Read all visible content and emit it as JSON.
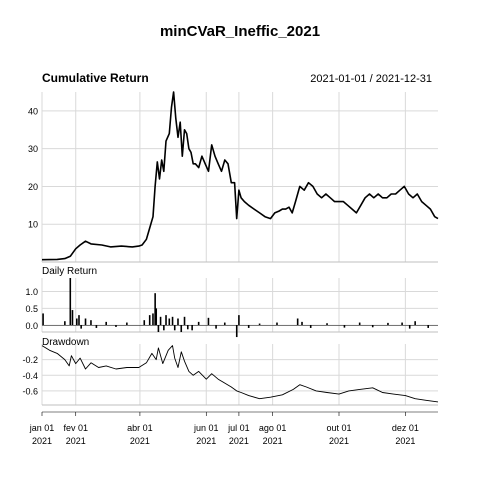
{
  "title": "minCVaR_Ineffic_2021",
  "date_range": "2021-01-01 / 2021-12-31",
  "colors": {
    "line": "#000000",
    "grid": "#d9d9d9",
    "frame": "#bfbfbf",
    "text": "#000000"
  },
  "chart_data": [
    {
      "type": "line",
      "title": "Cumulative Return",
      "x_ticks": [
        {
          "date": "2021-01-01",
          "month": "jan 01",
          "year": "2021"
        },
        {
          "date": "2021-02-01",
          "month": "fev 01",
          "year": "2021"
        },
        {
          "date": "2021-04-01",
          "month": "abr 01",
          "year": "2021"
        },
        {
          "date": "2021-06-01",
          "month": "jun 01",
          "year": "2021"
        },
        {
          "date": "2021-07-01",
          "month": "jul 01",
          "year": "2021"
        },
        {
          "date": "2021-08-01",
          "month": "ago 01",
          "year": "2021"
        },
        {
          "date": "2021-10-01",
          "month": "out 01",
          "year": "2021"
        },
        {
          "date": "2021-12-01",
          "month": "dez 01",
          "year": "2021"
        }
      ],
      "ylim": [
        0,
        45
      ],
      "yticks": [
        10,
        20,
        30,
        40
      ],
      "grid": true,
      "x": [
        "2021-01-01",
        "2021-01-15",
        "2021-01-22",
        "2021-01-27",
        "2021-02-01",
        "2021-02-05",
        "2021-02-10",
        "2021-02-15",
        "2021-02-25",
        "2021-03-05",
        "2021-03-15",
        "2021-03-25",
        "2021-03-31",
        "2021-04-03",
        "2021-04-07",
        "2021-04-10",
        "2021-04-13",
        "2021-04-15",
        "2021-04-17",
        "2021-04-19",
        "2021-04-21",
        "2021-04-23",
        "2021-04-25",
        "2021-04-28",
        "2021-04-30",
        "2021-05-02",
        "2021-05-04",
        "2021-05-06",
        "2021-05-08",
        "2021-05-10",
        "2021-05-12",
        "2021-05-14",
        "2021-05-16",
        "2021-05-18",
        "2021-05-20",
        "2021-05-22",
        "2021-05-25",
        "2021-05-28",
        "2021-05-31",
        "2021-06-03",
        "2021-06-06",
        "2021-06-09",
        "2021-06-12",
        "2021-06-15",
        "2021-06-18",
        "2021-06-21",
        "2021-06-24",
        "2021-06-27",
        "2021-06-29",
        "2021-07-01",
        "2021-07-03",
        "2021-07-06",
        "2021-07-10",
        "2021-07-15",
        "2021-07-20",
        "2021-07-25",
        "2021-07-30",
        "2021-08-03",
        "2021-08-07",
        "2021-08-10",
        "2021-08-13",
        "2021-08-16",
        "2021-08-19",
        "2021-08-22",
        "2021-08-26",
        "2021-08-30",
        "2021-09-03",
        "2021-09-07",
        "2021-09-11",
        "2021-09-15",
        "2021-09-19",
        "2021-09-23",
        "2021-09-27",
        "2021-10-01",
        "2021-10-05",
        "2021-10-09",
        "2021-10-13",
        "2021-10-17",
        "2021-10-21",
        "2021-10-25",
        "2021-10-29",
        "2021-11-02",
        "2021-11-06",
        "2021-11-10",
        "2021-11-14",
        "2021-11-18",
        "2021-11-22",
        "2021-11-26",
        "2021-11-30",
        "2021-12-04",
        "2021-12-08",
        "2021-12-12",
        "2021-12-16",
        "2021-12-20",
        "2021-12-24",
        "2021-12-28",
        "2021-12-31"
      ],
      "y": [
        0.6,
        0.7,
        0.9,
        1.5,
        3.5,
        4.5,
        5.5,
        4.8,
        4.5,
        4.0,
        4.2,
        4.0,
        4.2,
        4.5,
        6,
        9,
        12,
        20,
        26.5,
        22,
        27,
        24,
        32,
        34,
        41,
        45,
        38,
        33,
        37,
        28,
        35,
        34,
        30,
        29,
        26,
        26,
        25,
        28,
        26,
        24,
        31,
        28,
        26,
        24,
        27,
        26,
        21,
        21,
        11.5,
        19,
        17,
        16,
        15,
        14,
        13,
        12,
        11.5,
        13,
        13.5,
        14,
        14,
        14.5,
        13,
        16,
        20,
        19,
        21,
        20,
        18,
        17,
        18,
        17,
        16,
        16,
        16,
        15,
        14,
        13,
        15,
        17,
        18,
        17,
        18,
        17,
        17,
        18,
        18,
        19,
        20,
        18,
        17,
        18,
        16,
        15,
        14,
        12,
        11.5
      ]
    },
    {
      "type": "bar",
      "title": "Daily Return",
      "ylim": [
        -0.2,
        1.4
      ],
      "yticks": [
        0.0,
        0.5,
        1.0
      ],
      "spikes": [
        {
          "date": "2021-01-02",
          "value": 0.35
        },
        {
          "date": "2021-01-22",
          "value": 0.12
        },
        {
          "date": "2021-01-27",
          "value": 1.4
        },
        {
          "date": "2021-01-29",
          "value": 0.45
        },
        {
          "date": "2021-02-02",
          "value": 0.2
        },
        {
          "date": "2021-02-04",
          "value": 0.3
        },
        {
          "date": "2021-02-06",
          "value": -0.1
        },
        {
          "date": "2021-02-10",
          "value": 0.2
        },
        {
          "date": "2021-02-15",
          "value": 0.15
        },
        {
          "date": "2021-02-20",
          "value": -0.08
        },
        {
          "date": "2021-03-01",
          "value": 0.1
        },
        {
          "date": "2021-03-10",
          "value": -0.05
        },
        {
          "date": "2021-03-20",
          "value": 0.08
        },
        {
          "date": "2021-04-05",
          "value": 0.15
        },
        {
          "date": "2021-04-10",
          "value": 0.3
        },
        {
          "date": "2021-04-13",
          "value": 0.35
        },
        {
          "date": "2021-04-15",
          "value": 0.95
        },
        {
          "date": "2021-04-16",
          "value": 0.5
        },
        {
          "date": "2021-04-18",
          "value": -0.2
        },
        {
          "date": "2021-04-20",
          "value": 0.25
        },
        {
          "date": "2021-04-23",
          "value": -0.15
        },
        {
          "date": "2021-04-25",
          "value": 0.3
        },
        {
          "date": "2021-04-28",
          "value": 0.2
        },
        {
          "date": "2021-05-01",
          "value": 0.25
        },
        {
          "date": "2021-05-03",
          "value": -0.15
        },
        {
          "date": "2021-05-06",
          "value": 0.2
        },
        {
          "date": "2021-05-09",
          "value": -0.2
        },
        {
          "date": "2021-05-12",
          "value": 0.25
        },
        {
          "date": "2021-05-15",
          "value": -0.12
        },
        {
          "date": "2021-05-19",
          "value": -0.15
        },
        {
          "date": "2021-05-25",
          "value": 0.1
        },
        {
          "date": "2021-06-03",
          "value": 0.22
        },
        {
          "date": "2021-06-10",
          "value": -0.1
        },
        {
          "date": "2021-06-18",
          "value": 0.08
        },
        {
          "date": "2021-06-29",
          "value": -0.35
        },
        {
          "date": "2021-07-01",
          "value": 0.3
        },
        {
          "date": "2021-07-10",
          "value": -0.08
        },
        {
          "date": "2021-07-20",
          "value": 0.05
        },
        {
          "date": "2021-08-05",
          "value": 0.08
        },
        {
          "date": "2021-08-24",
          "value": 0.2
        },
        {
          "date": "2021-08-28",
          "value": 0.1
        },
        {
          "date": "2021-09-05",
          "value": -0.08
        },
        {
          "date": "2021-09-20",
          "value": 0.06
        },
        {
          "date": "2021-10-06",
          "value": -0.07
        },
        {
          "date": "2021-10-20",
          "value": 0.08
        },
        {
          "date": "2021-11-01",
          "value": -0.06
        },
        {
          "date": "2021-11-15",
          "value": 0.07
        },
        {
          "date": "2021-11-28",
          "value": 0.08
        },
        {
          "date": "2021-12-05",
          "value": -0.1
        },
        {
          "date": "2021-12-10",
          "value": 0.12
        },
        {
          "date": "2021-12-22",
          "value": -0.08
        }
      ]
    },
    {
      "type": "line",
      "title": "Drawdown",
      "ylim": [
        -0.78,
        0.0
      ],
      "yticks": [
        -0.2,
        -0.4,
        -0.6
      ],
      "x": [
        "2021-01-01",
        "2021-01-08",
        "2021-01-15",
        "2021-01-22",
        "2021-01-26",
        "2021-01-28",
        "2021-02-01",
        "2021-02-05",
        "2021-02-10",
        "2021-02-15",
        "2021-02-22",
        "2021-03-01",
        "2021-03-10",
        "2021-03-20",
        "2021-03-31",
        "2021-04-07",
        "2021-04-12",
        "2021-04-16",
        "2021-04-18",
        "2021-04-22",
        "2021-04-27",
        "2021-05-01",
        "2021-05-03",
        "2021-05-06",
        "2021-05-09",
        "2021-05-12",
        "2021-05-16",
        "2021-05-20",
        "2021-05-25",
        "2021-06-01",
        "2021-06-06",
        "2021-06-12",
        "2021-06-18",
        "2021-06-24",
        "2021-06-29",
        "2021-07-03",
        "2021-07-10",
        "2021-07-20",
        "2021-07-30",
        "2021-08-10",
        "2021-08-20",
        "2021-08-26",
        "2021-09-01",
        "2021-09-10",
        "2021-09-20",
        "2021-10-01",
        "2021-10-10",
        "2021-10-20",
        "2021-11-01",
        "2021-11-10",
        "2021-11-20",
        "2021-12-01",
        "2021-12-10",
        "2021-12-20",
        "2021-12-31"
      ],
      "y": [
        -0.02,
        -0.08,
        -0.12,
        -0.2,
        -0.28,
        -0.15,
        -0.25,
        -0.18,
        -0.32,
        -0.24,
        -0.3,
        -0.28,
        -0.32,
        -0.3,
        -0.3,
        -0.24,
        -0.12,
        -0.2,
        -0.05,
        -0.25,
        -0.08,
        -0.02,
        -0.18,
        -0.3,
        -0.1,
        -0.22,
        -0.35,
        -0.4,
        -0.35,
        -0.45,
        -0.38,
        -0.45,
        -0.5,
        -0.55,
        -0.6,
        -0.62,
        -0.66,
        -0.7,
        -0.68,
        -0.65,
        -0.58,
        -0.52,
        -0.55,
        -0.6,
        -0.62,
        -0.64,
        -0.6,
        -0.58,
        -0.56,
        -0.62,
        -0.64,
        -0.66,
        -0.7,
        -0.72,
        -0.74
      ]
    }
  ]
}
